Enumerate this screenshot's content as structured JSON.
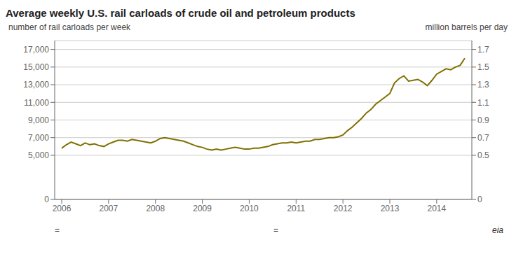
{
  "chart_data": {
    "type": "line",
    "title": "Average weekly U.S. rail carloads of crude oil and petroleum products",
    "ylabel": "number  of rail carloads  per week",
    "y2label": "million barrels  per day",
    "color": "#807000",
    "grid": true,
    "xlim": [
      2005.85,
      2014.75
    ],
    "xticks": [
      2006,
      2007,
      2008,
      2009,
      2010,
      2011,
      2012,
      2013,
      2014
    ],
    "ylim": [
      0,
      18000
    ],
    "yticks": [
      0,
      {
        "value": 5000,
        "label": "5,000"
      },
      {
        "value": 7000,
        "label": "7,000"
      },
      {
        "value": 9000,
        "label": "9,000"
      },
      {
        "value": 11000,
        "label": "11,000"
      },
      {
        "value": 13000,
        "label": "13,000"
      },
      {
        "value": 15000,
        "label": "15,000"
      },
      {
        "value": 17000,
        "label": "17,000"
      }
    ],
    "y2lim": [
      0,
      1.8
    ],
    "y2ticks": [
      0,
      0.5,
      0.7,
      0.9,
      1.1,
      1.3,
      1.5,
      1.7
    ],
    "annotations": [
      "=",
      "=",
      "eia"
    ],
    "x": [
      2006.0,
      2006.1,
      2006.2,
      2006.3,
      2006.4,
      2006.5,
      2006.6,
      2006.7,
      2006.8,
      2006.9,
      2007.0,
      2007.1,
      2007.2,
      2007.3,
      2007.4,
      2007.5,
      2007.6,
      2007.7,
      2007.8,
      2007.9,
      2008.0,
      2008.1,
      2008.2,
      2008.3,
      2008.4,
      2008.5,
      2008.6,
      2008.7,
      2008.8,
      2008.9,
      2009.0,
      2009.1,
      2009.2,
      2009.3,
      2009.4,
      2009.5,
      2009.6,
      2009.7,
      2009.8,
      2009.9,
      2010.0,
      2010.1,
      2010.2,
      2010.3,
      2010.4,
      2010.5,
      2010.6,
      2010.7,
      2010.8,
      2010.9,
      2011.0,
      2011.1,
      2011.2,
      2011.3,
      2011.4,
      2011.5,
      2011.6,
      2011.7,
      2011.8,
      2011.9,
      2012.0,
      2012.1,
      2012.2,
      2012.3,
      2012.4,
      2012.5,
      2012.6,
      2012.7,
      2012.8,
      2012.9,
      2013.0,
      2013.1,
      2013.2,
      2013.3,
      2013.4,
      2013.5,
      2013.6,
      2013.7,
      2013.8,
      2013.9,
      2014.0,
      2014.1,
      2014.2,
      2014.3,
      2014.4,
      2014.5,
      2014.6
    ],
    "values": [
      5800,
      6200,
      6500,
      6300,
      6100,
      6400,
      6200,
      6300,
      6100,
      6000,
      6300,
      6500,
      6700,
      6700,
      6600,
      6800,
      6700,
      6600,
      6500,
      6400,
      6600,
      6900,
      7000,
      6900,
      6800,
      6700,
      6600,
      6400,
      6200,
      6000,
      5900,
      5700,
      5600,
      5700,
      5600,
      5700,
      5800,
      5900,
      5800,
      5700,
      5700,
      5800,
      5800,
      5900,
      6000,
      6200,
      6300,
      6400,
      6400,
      6500,
      6400,
      6500,
      6600,
      6600,
      6800,
      6800,
      6900,
      7000,
      7000,
      7100,
      7300,
      7800,
      8200,
      8700,
      9200,
      9800,
      10200,
      10800,
      11200,
      11600,
      12000,
      13200,
      13700,
      14000,
      13400,
      13500,
      13600,
      13300,
      12900,
      13500,
      14200,
      14500,
      14800,
      14700,
      15000,
      15200,
      16000
    ]
  }
}
